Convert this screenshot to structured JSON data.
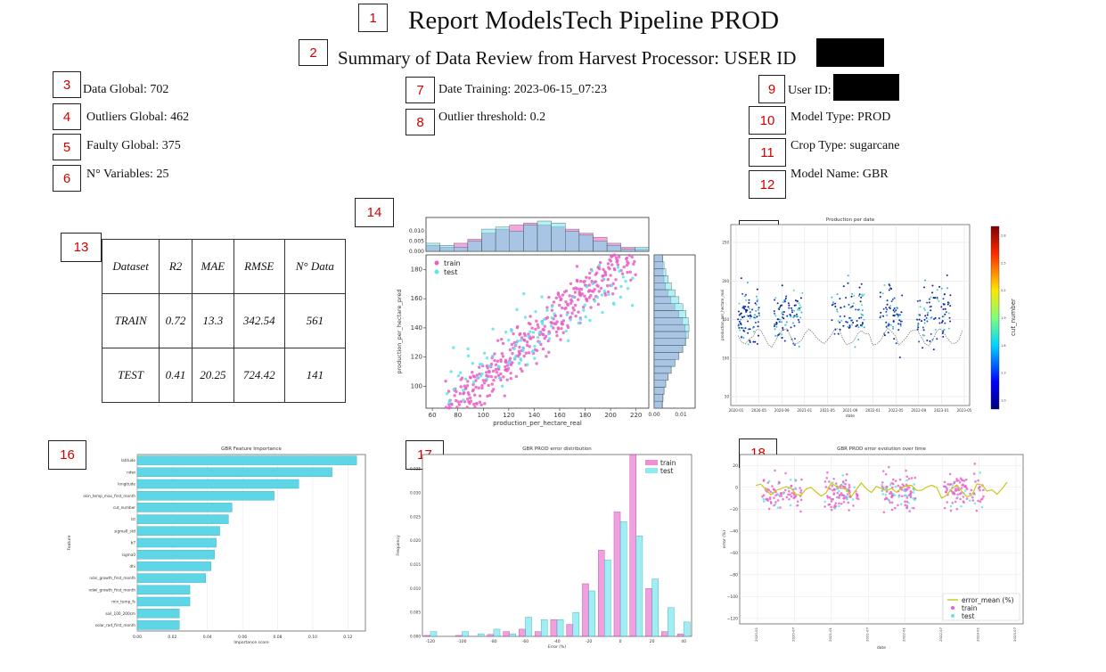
{
  "header": {
    "title": "Report ModelsTech Pipeline PROD",
    "subtitle": "Summary of Data Review from Harvest Processor: USER ID"
  },
  "badges": [
    "1",
    "2",
    "3",
    "4",
    "5",
    "6",
    "7",
    "8",
    "9",
    "10",
    "11",
    "12",
    "13",
    "14",
    "15",
    "16",
    "17",
    "18"
  ],
  "summary_left": [
    {
      "label": "Data Global: ",
      "value": "702"
    },
    {
      "label": "Outliers Global: ",
      "value": "462"
    },
    {
      "label": "Faulty Global: ",
      "value": "375"
    },
    {
      "label": "N° Variables: ",
      "value": "25"
    }
  ],
  "summary_mid": [
    {
      "label": "Date Training: ",
      "value": "2023-06-15_07:23"
    },
    {
      "label": "Outlier threshold: ",
      "value": "0.2"
    }
  ],
  "summary_right": [
    {
      "label": "User ID:",
      "value": ""
    },
    {
      "label": "Model Type: ",
      "value": "PROD"
    },
    {
      "label": "Crop Type: ",
      "value": "sugarcane"
    },
    {
      "label": "Model Name: ",
      "value": "GBR"
    }
  ],
  "metrics_table": {
    "headers": [
      "Dataset",
      "R2",
      "MAE",
      "RMSE",
      "N° Data"
    ],
    "rows": [
      [
        "TRAIN",
        "0.72",
        "13.3",
        "342.54",
        "561"
      ],
      [
        "TEST",
        "0.41",
        "20.25",
        "724.42",
        "141"
      ]
    ]
  },
  "colors": {
    "train": "#e85fc8",
    "test": "#5fe3ec",
    "hist_overlap": "#8aa5d8",
    "bar": "#5fd6e6",
    "mean_line": "#c8c81a",
    "badge_text": "#d40000"
  },
  "chart_data": [
    {
      "type": "scatter",
      "xlabel": "production_per_hectare_real",
      "ylabel": "production_per_hectare_pred",
      "xticks": [
        "60",
        "80",
        "100",
        "120",
        "140",
        "160",
        "180",
        "200",
        "220"
      ],
      "yticks": [
        "100",
        "120",
        "140",
        "160",
        "180"
      ],
      "top_hist_yticks": [
        "0.000",
        "0.005",
        "0.010"
      ],
      "right_hist_xticks": [
        "0.00",
        "0.01"
      ],
      "xlim": [
        55,
        230
      ],
      "ylim": [
        85,
        190
      ],
      "legend": [
        "train",
        "test"
      ],
      "series": [
        {
          "name": "train",
          "trend": {
            "slope": 0.75,
            "intercept": 30,
            "spread": 18,
            "n": 420
          }
        },
        {
          "name": "test",
          "trend": {
            "slope": 0.55,
            "intercept": 60,
            "spread": 24,
            "n": 110
          }
        }
      ]
    },
    {
      "type": "scatter",
      "title": "Production per date",
      "xlabel": "date",
      "ylabel": "production_per_hectare_real",
      "colorbar_label": "cut_number",
      "xticks": [
        "2020-01",
        "2020-05",
        "2020-09",
        "2021-01",
        "2021-05",
        "2021-09",
        "2022-01",
        "2022-05",
        "2022-09",
        "2023-01",
        "2023-05"
      ],
      "yticks": [
        "50",
        "100",
        "150",
        "200",
        "250"
      ],
      "colorbar_ticks": [
        "1.0",
        "1.3",
        "1.6",
        "1.9",
        "2.2",
        "2.5",
        "2.8"
      ]
    },
    {
      "type": "bar",
      "title": "GBR Feature Importance",
      "xlabel": "Importance score",
      "ylabel": "Feature",
      "xticks": [
        "0.00",
        "0.02",
        "0.04",
        "0.06",
        "0.08",
        "0.10",
        "0.12"
      ],
      "xlim": [
        0,
        0.13
      ],
      "categories": [
        "latitude",
        "ndwi",
        "longitude",
        "skin_temp_max_first_month",
        "cut_number",
        "lst",
        "sigma0_std",
        "b7",
        "sigma0",
        "dhi",
        "ndvi_growth_first_month",
        "ndwi_growth_first_month",
        "min_temp_fs",
        "soil_100_200cm",
        "solar_rad_first_month"
      ],
      "values": [
        0.125,
        0.111,
        0.092,
        0.078,
        0.054,
        0.052,
        0.047,
        0.045,
        0.044,
        0.042,
        0.039,
        0.03,
        0.03,
        0.024,
        0.024
      ]
    },
    {
      "type": "bar",
      "title": "GBR PROD error distribution",
      "xlabel": "Error (%)",
      "ylabel": "Frequency",
      "xticks": [
        "-120",
        "-100",
        "-80",
        "-60",
        "-40",
        "-20",
        "0",
        "20",
        "40"
      ],
      "yticks": [
        "0.000",
        "0.005",
        "0.010",
        "0.015",
        "0.020",
        "0.025",
        "0.030",
        "0.035"
      ],
      "xlim": [
        -125,
        45
      ],
      "ylim": [
        0,
        0.038
      ],
      "legend": [
        "train",
        "test"
      ],
      "categories": [
        -120,
        -110,
        -100,
        -90,
        -80,
        -70,
        -60,
        -50,
        -40,
        -30,
        -20,
        -10,
        0,
        10,
        20,
        30,
        40
      ],
      "series": [
        {
          "name": "train",
          "values": [
            0.0002,
            0,
            0.0002,
            0,
            0.0004,
            0.001,
            0.0015,
            0.001,
            0.0035,
            0.0025,
            0.011,
            0.018,
            0.026,
            0.038,
            0.01,
            0.001,
            0.0005
          ]
        },
        {
          "name": "test",
          "values": [
            0.001,
            0,
            0.001,
            0.0005,
            0.0015,
            0.0005,
            0.004,
            0.0035,
            0.0035,
            0.005,
            0.0095,
            0.016,
            0.024,
            0.021,
            0.012,
            0.006,
            0.003
          ]
        }
      ]
    },
    {
      "type": "scatter",
      "title": "GBR PROD error evolution over time",
      "xlabel": "date",
      "ylabel": "error (%)",
      "xticks": [
        "2020-01",
        "2020-07",
        "2021-01",
        "2021-07",
        "2022-01",
        "2022-07",
        "2023-01",
        "2023-07"
      ],
      "yticks": [
        "20",
        "0",
        "−20",
        "−40",
        "−60",
        "−80",
        "−100",
        "−120"
      ],
      "ylim": [
        -125,
        30
      ],
      "legend": [
        "error_mean (%)",
        "train",
        "test"
      ]
    }
  ]
}
